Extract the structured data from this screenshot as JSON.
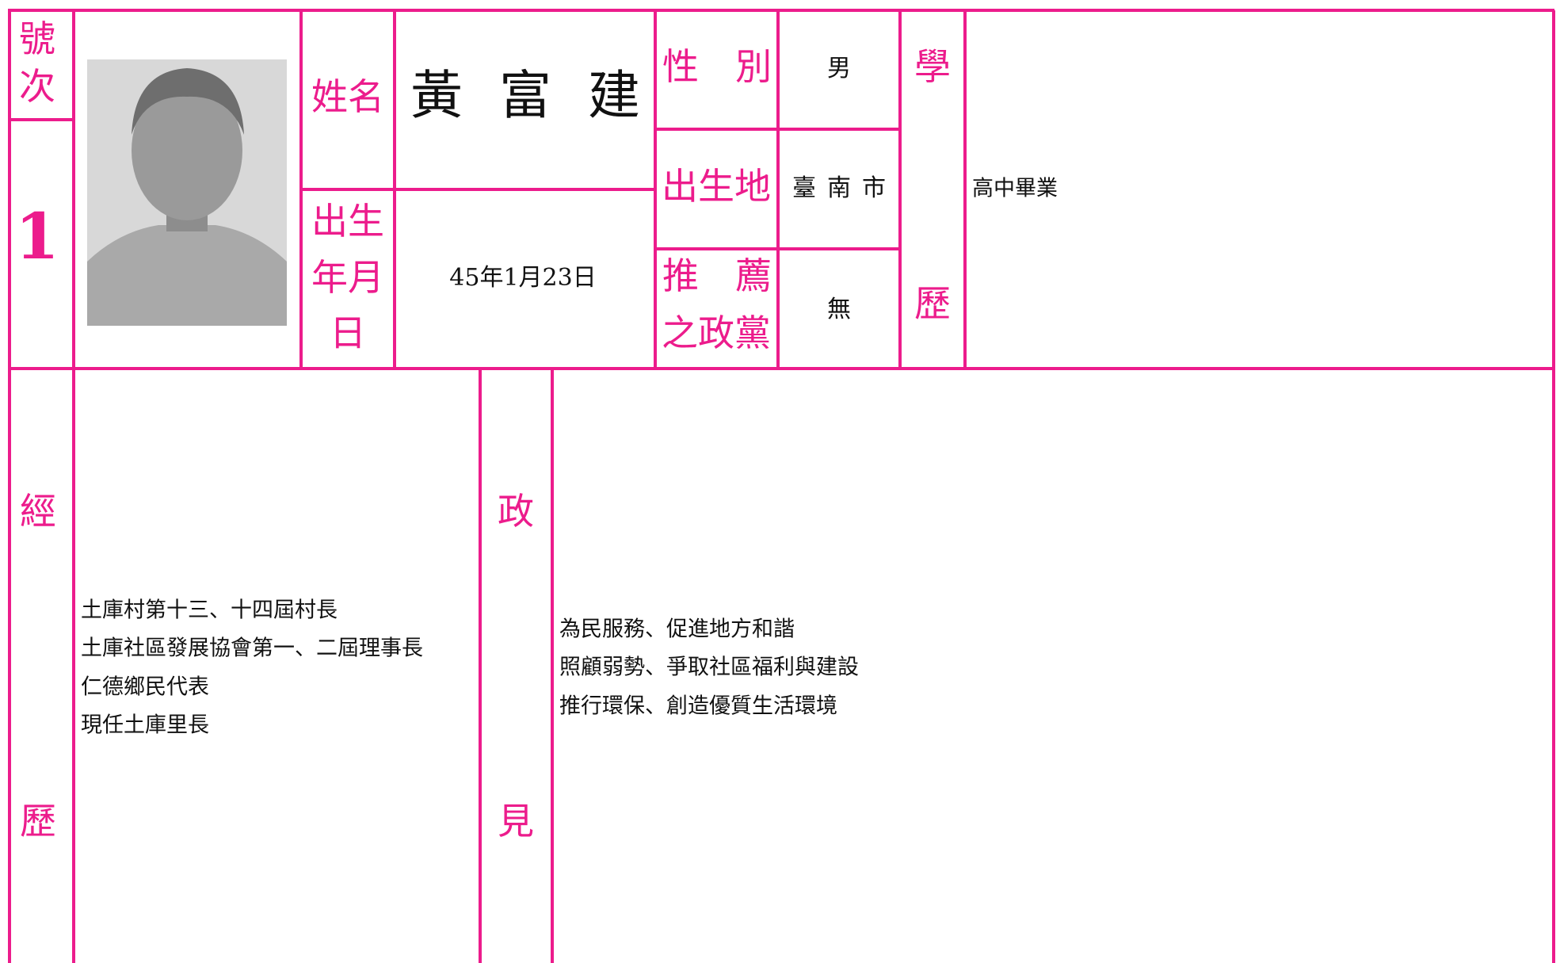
{
  "profile": {
    "number_label": [
      "號",
      "次"
    ],
    "number": "1",
    "name_label": "姓名",
    "name": "黃富建",
    "birthdate_label": [
      "出生",
      "年月",
      "日"
    ],
    "birthdate": "45年1月23日",
    "gender_label": "性別",
    "gender": "男",
    "birthplace_label": "出生地",
    "birthplace": "臺南市",
    "party_label": [
      "推薦",
      "之政黨"
    ],
    "party": "無",
    "education_label": [
      "學",
      "歷"
    ],
    "education": "高中畢業",
    "experience_label": [
      "經",
      "歷"
    ],
    "experience": [
      "土庫村第十三、十四屆村長",
      "土庫社區發展協會第一、二屆理事長",
      "仁德鄉民代表",
      "現任土庫里長"
    ],
    "platform_label": [
      "政",
      "見"
    ],
    "platform": [
      "為民服務、促進地方和諧",
      "照顧弱勢、爭取社區福利與建設",
      "推行環保、創造優質生活環境"
    ]
  }
}
